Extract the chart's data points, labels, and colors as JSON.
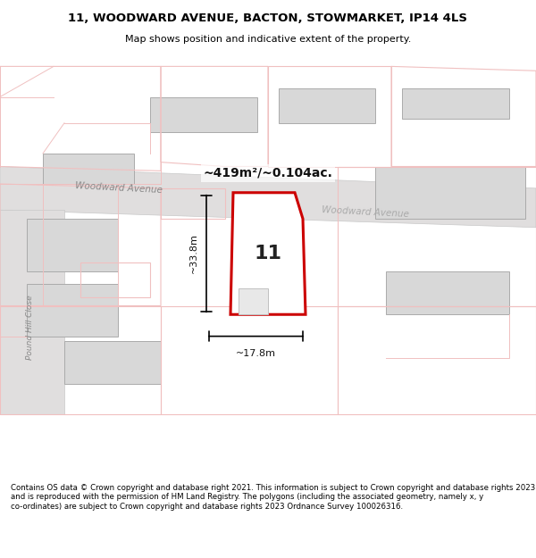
{
  "title": "11, WOODWARD AVENUE, BACTON, STOWMARKET, IP14 4LS",
  "subtitle": "Map shows position and indicative extent of the property.",
  "footer": "Contains OS data © Crown copyright and database right 2021. This information is subject to Crown copyright and database rights 2023 and is reproduced with the permission of HM Land Registry. The polygons (including the associated geometry, namely x, y co-ordinates) are subject to Crown copyright and database rights 2023 Ordnance Survey 100026316.",
  "bg_color": "#f5f0f0",
  "map_bg": "#ffffff",
  "road_label1": "Woodward Avenue",
  "road_label2": "Woodward Avenue",
  "road_color": "#c8c8c8",
  "plot_label": "11",
  "area_label": "~419m²/~0.104ac.",
  "dim_width": "~17.8m",
  "dim_height": "~33.8m",
  "highlight_color": "#cc0000",
  "highlight_fill": "#ffffff",
  "building_fill": "#d8d8d8",
  "building_outline": "#b0b0b0",
  "faded_red": "#f0c0c0",
  "road_fill": "#e8e8e8",
  "road_stroke": "#c0c0c0"
}
